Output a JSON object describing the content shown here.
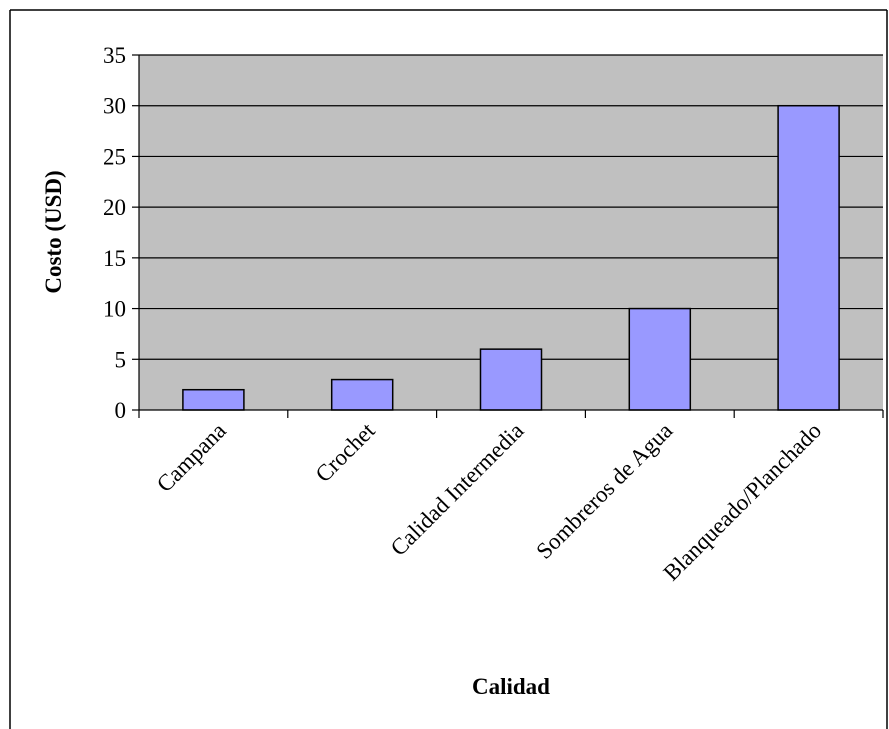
{
  "chart_data": {
    "type": "bar",
    "title": "",
    "xlabel": "Calidad",
    "ylabel": "Costo (USD)",
    "categories": [
      "Campana",
      "Crochet",
      "Calidad Intermedia",
      "Sombreros de Agua",
      "Blanqueado/Planchado"
    ],
    "values": [
      2,
      3,
      6,
      10,
      30
    ],
    "ylim": [
      0,
      35
    ],
    "y_ticks": [
      "0",
      "5",
      "10",
      "15",
      "20",
      "25",
      "30",
      "35"
    ],
    "grid": true,
    "legend": "none",
    "colors": {
      "bar_fill": "#9999ff",
      "plot_background": "#c0c0c0",
      "gridline": "#000000"
    }
  }
}
